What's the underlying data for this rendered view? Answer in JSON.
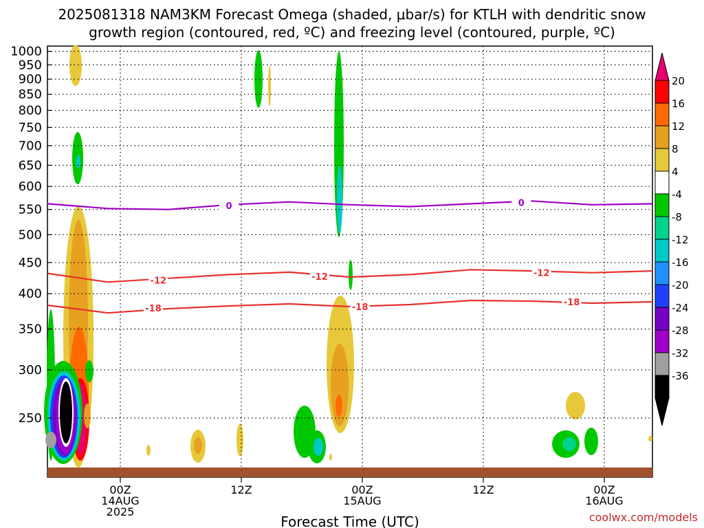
{
  "chart_data": {
    "type": "heatmap",
    "title_line1": "2025081318 NAM3KM Forecast Omega (shaded, μbar/s) for KTLH with dendritic snow",
    "title_line2": "growth region (contoured, red, ºC) and freezing level (contoured, purple, ºC)",
    "xlabel": "Forecast Time (UTC)",
    "ylabel": "",
    "y_scale": "log",
    "y_reversed": true,
    "ylim": [
      1020,
      200
    ],
    "xlim": [
      "2025-08-13T18Z",
      "2025-08-16T06Z"
    ],
    "y_ticks": [
      250,
      300,
      350,
      400,
      450,
      500,
      550,
      600,
      650,
      700,
      750,
      800,
      850,
      900,
      950,
      1000
    ],
    "x_ticks": [
      {
        "x": "2025-08-14T00Z",
        "lines": [
          "00Z",
          "14AUG",
          "2025"
        ]
      },
      {
        "x": "2025-08-14T12Z",
        "lines": [
          "12Z"
        ]
      },
      {
        "x": "2025-08-15T00Z",
        "lines": [
          "00Z",
          "15AUG"
        ]
      },
      {
        "x": "2025-08-15T12Z",
        "lines": [
          "12Z"
        ]
      },
      {
        "x": "2025-08-16T00Z",
        "lines": [
          "00Z",
          "16AUG"
        ]
      }
    ],
    "grid": true,
    "colorbar": {
      "position": "right",
      "labels": [
        "20",
        "16",
        "12",
        "8",
        "4",
        "-4",
        "-8",
        "-12",
        "-16",
        "-20",
        "-24",
        "-28",
        "-32",
        "-36"
      ],
      "colors": [
        "#ff0000",
        "#ff6a00",
        "#e8a020",
        "#e6c83a",
        "#ffffff",
        "#00c800",
        "#00d28c",
        "#00c8c8",
        "#1e90ff",
        "#2040ff",
        "#7800c8",
        "#a000c8",
        "#a0a0a0",
        "#000000"
      ],
      "top_arrow_color": "#e8006e",
      "bottom_arrow_color": "#000000"
    },
    "contours": [
      {
        "value": -18,
        "label": "-18",
        "color": "#e83030",
        "x_hours": [
          0,
          6,
          12,
          18,
          24,
          30,
          36,
          42,
          48,
          54,
          60
        ],
        "y": [
          383,
          372,
          378,
          382,
          385,
          381,
          384,
          390,
          389,
          386,
          388
        ]
      },
      {
        "value": -12,
        "label": "-12",
        "color": "#e83030",
        "x_hours": [
          0,
          6,
          12,
          18,
          24,
          30,
          36,
          42,
          48,
          54,
          60
        ],
        "y": [
          432,
          418,
          424,
          430,
          434,
          426,
          430,
          438,
          436,
          433,
          436
        ]
      },
      {
        "value": 0,
        "label": "0",
        "color": "#a000c8",
        "x_hours": [
          0,
          6,
          12,
          18,
          24,
          30,
          36,
          42,
          48,
          54,
          60
        ],
        "y": [
          562,
          552,
          550,
          560,
          566,
          560,
          556,
          562,
          568,
          560,
          562
        ]
      }
    ],
    "surface_color": "#a0522d",
    "label_positions": [
      {
        "label": "-18",
        "x_hour": 10.5,
        "y": 379
      },
      {
        "label": "-18",
        "x_hour": 31,
        "y": 381
      },
      {
        "label": "-18",
        "x_hour": 52,
        "y": 388
      },
      {
        "label": "-12",
        "x_hour": 11,
        "y": 421
      },
      {
        "label": "-12",
        "x_hour": 27,
        "y": 427
      },
      {
        "label": "-12",
        "x_hour": 49,
        "y": 433
      },
      {
        "label": "0",
        "x_hour": 18,
        "y": 558
      },
      {
        "label": "0",
        "x_hour": 47,
        "y": 565
      }
    ]
  },
  "credit": "coolwx.com/models"
}
